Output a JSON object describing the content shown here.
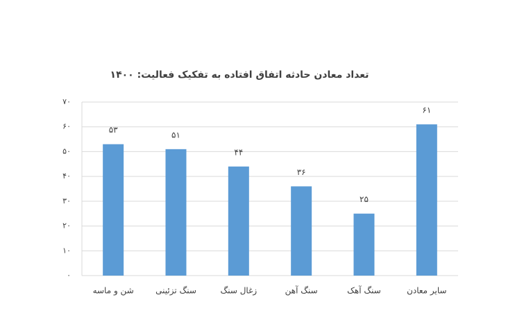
{
  "chart_data": {
    "type": "bar",
    "title": "تعداد معادن حادثه اتفاق افتاده به تفکیک فعالیت: ۱۴۰۰",
    "categories": [
      "شن و ماسه",
      "سنگ تزئینی",
      "زغال سنگ",
      "سنگ آهن",
      "سنگ آهک",
      "سایر معادن"
    ],
    "values": [
      53,
      51,
      44,
      36,
      25,
      61
    ],
    "value_labels": [
      "۵۳",
      "۵۱",
      "۴۴",
      "۳۶",
      "۲۵",
      "۶۱"
    ],
    "color": "#5b9bd5",
    "ylim": [
      0,
      70
    ],
    "yticks": [
      {
        "value": 0,
        "label": "۰"
      },
      {
        "value": 10,
        "label": "۱۰"
      },
      {
        "value": 20,
        "label": "۲۰"
      },
      {
        "value": 30,
        "label": "۳۰"
      },
      {
        "value": 40,
        "label": "۴۰"
      },
      {
        "value": 50,
        "label": "۵۰"
      },
      {
        "value": 60,
        "label": "۶۰"
      },
      {
        "value": 70,
        "label": "۷۰"
      }
    ],
    "grid": true
  }
}
